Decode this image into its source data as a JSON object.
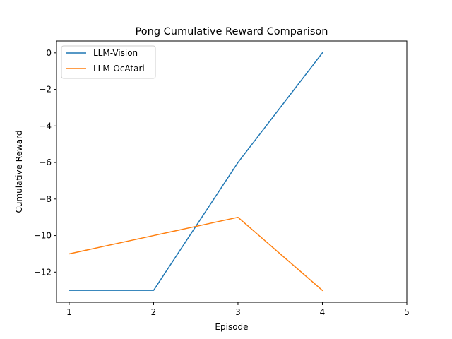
{
  "chart_data": {
    "type": "line",
    "title": "Pong Cumulative Reward Comparison",
    "xlabel": "Episode",
    "ylabel": "Cumulative Reward",
    "x_ticks": [
      1,
      2,
      3,
      4,
      5
    ],
    "y_ticks": [
      0,
      -2,
      -4,
      -6,
      -8,
      -10,
      -12
    ],
    "xlim": [
      0.85,
      5.0
    ],
    "ylim": [
      -13.65,
      0.65
    ],
    "grid": false,
    "legend_position": "top-left",
    "series": [
      {
        "name": "LLM-Vision",
        "color": "#1f77b4",
        "x": [
          1,
          2,
          3,
          4
        ],
        "y": [
          -13,
          -13,
          -6,
          0
        ]
      },
      {
        "name": "LLM-OcAtari",
        "color": "#ff7f0e",
        "x": [
          1,
          2,
          3,
          4
        ],
        "y": [
          -11,
          -10,
          -9,
          -13
        ]
      }
    ]
  }
}
